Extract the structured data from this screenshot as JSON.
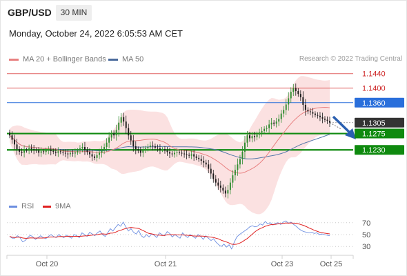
{
  "header": {
    "pair": "GBP/USD",
    "timeframe": "30 MIN",
    "datetime": "Monday, October 24, 2022 6:05:53 AM CET"
  },
  "legend": {
    "ma20": "MA 20 + Bollinger Bands",
    "ma50": "MA 50",
    "research": "Research © 2022 Trading Central"
  },
  "rsi_legend": {
    "rsi": "RSI",
    "ma": "9MA"
  },
  "colors": {
    "up": "#2e8b2e",
    "down": "#1a1a1a",
    "resistance": "#e06060",
    "pivot": "#2a6fdb",
    "support": "#0f8a0f",
    "current": "#333333",
    "band": "#f9d7d7",
    "ma20": "#e88080",
    "ma50": "#5577aa",
    "rsi": "#6c8ee0",
    "rsi_ma": "#e02020",
    "arrow": "#2a5fb0"
  },
  "chart_data": [
    {
      "type": "candlestick",
      "title": "GBP/USD",
      "timeframe": "30 MIN",
      "x_ticks": [
        "Oct 20",
        "Oct 21",
        "Oct 23",
        "Oct 25"
      ],
      "ylim": [
        1.1088,
        1.1466
      ],
      "levels": [
        {
          "name": "resistance-2",
          "value": 1.144,
          "label": "1.1440",
          "kind": "resistance"
        },
        {
          "name": "resistance-1",
          "value": 1.14,
          "label": "1.1400",
          "kind": "resistance"
        },
        {
          "name": "pivot",
          "value": 1.136,
          "label": "1.1360",
          "kind": "pivot"
        },
        {
          "name": "current",
          "value": 1.1305,
          "label": "1.1305",
          "kind": "current"
        },
        {
          "name": "support-1",
          "value": 1.1275,
          "label": "1.1275",
          "kind": "support"
        },
        {
          "name": "support-2",
          "value": 1.123,
          "label": "1.1230",
          "kind": "support"
        }
      ],
      "close": [
        1.127,
        1.1258,
        1.1245,
        1.1232,
        1.1225,
        1.1222,
        1.123,
        1.1228,
        1.1235,
        1.1232,
        1.123,
        1.1228,
        1.1222,
        1.1226,
        1.1224,
        1.1228,
        1.123,
        1.1227,
        1.1225,
        1.1222,
        1.1226,
        1.1224,
        1.1222,
        1.122,
        1.1218,
        1.1222,
        1.122,
        1.1223,
        1.1228,
        1.1234,
        1.1238,
        1.123,
        1.1224,
        1.1218,
        1.1212,
        1.1208,
        1.1216,
        1.1222,
        1.1228,
        1.1238,
        1.125,
        1.1264,
        1.1275,
        1.127,
        1.1285,
        1.1305,
        1.132,
        1.1308,
        1.129,
        1.127,
        1.1256,
        1.124,
        1.1232,
        1.1228,
        1.1222,
        1.1228,
        1.1234,
        1.1238,
        1.1242,
        1.124,
        1.1236,
        1.1234,
        1.123,
        1.1232,
        1.1228,
        1.1224,
        1.122,
        1.1218,
        1.1222,
        1.1224,
        1.1222,
        1.122,
        1.1218,
        1.1216,
        1.1214,
        1.1218,
        1.1212,
        1.1208,
        1.1205,
        1.12,
        1.1195,
        1.119,
        1.1178,
        1.1165,
        1.115,
        1.114,
        1.1132,
        1.1126,
        1.1118,
        1.111,
        1.112,
        1.114,
        1.116,
        1.1175,
        1.119,
        1.1205,
        1.1225,
        1.125,
        1.127,
        1.1262,
        1.1268,
        1.1265,
        1.1272,
        1.1278,
        1.1282,
        1.1288,
        1.129,
        1.13,
        1.1305,
        1.1302,
        1.1308,
        1.1315,
        1.133,
        1.134,
        1.1355,
        1.1372,
        1.139,
        1.14,
        1.1392,
        1.1384,
        1.1375,
        1.1354,
        1.134,
        1.1336,
        1.1334,
        1.133,
        1.1326,
        1.1324,
        1.132,
        1.1316,
        1.1313,
        1.131,
        1.1305
      ]
    },
    {
      "type": "line",
      "title": "RSI",
      "series": [
        {
          "name": "RSI"
        },
        {
          "name": "9MA"
        }
      ],
      "ylim": [
        21,
        79
      ],
      "y_ticks": [
        70,
        50,
        30
      ],
      "rsi": [
        47,
        44,
        44,
        48,
        45,
        38,
        40,
        45,
        49,
        46,
        42,
        45,
        48,
        45,
        43,
        47,
        50,
        47,
        45,
        50,
        47,
        45,
        49,
        46,
        44,
        50,
        48,
        45,
        53,
        50,
        47,
        54,
        51,
        48,
        53,
        56,
        50,
        47,
        53,
        60,
        56,
        62,
        67,
        64,
        71,
        63,
        56,
        60,
        54,
        51,
        57,
        48,
        45,
        50,
        46,
        51,
        49,
        45,
        53,
        50,
        48,
        55,
        52,
        46,
        50,
        47,
        44,
        53,
        48,
        45,
        50,
        47,
        44,
        50,
        47,
        42,
        48,
        44,
        40,
        43,
        37,
        33,
        30,
        34,
        29,
        33,
        26,
        37,
        46,
        50,
        53,
        56,
        59,
        63,
        65,
        63,
        64,
        68,
        66,
        72,
        68,
        70,
        66,
        69,
        70,
        67,
        71,
        73,
        69,
        71,
        67,
        64,
        60,
        57,
        55,
        54,
        53,
        54,
        52,
        53,
        50,
        51,
        50,
        49,
        48
      ]
    }
  ]
}
